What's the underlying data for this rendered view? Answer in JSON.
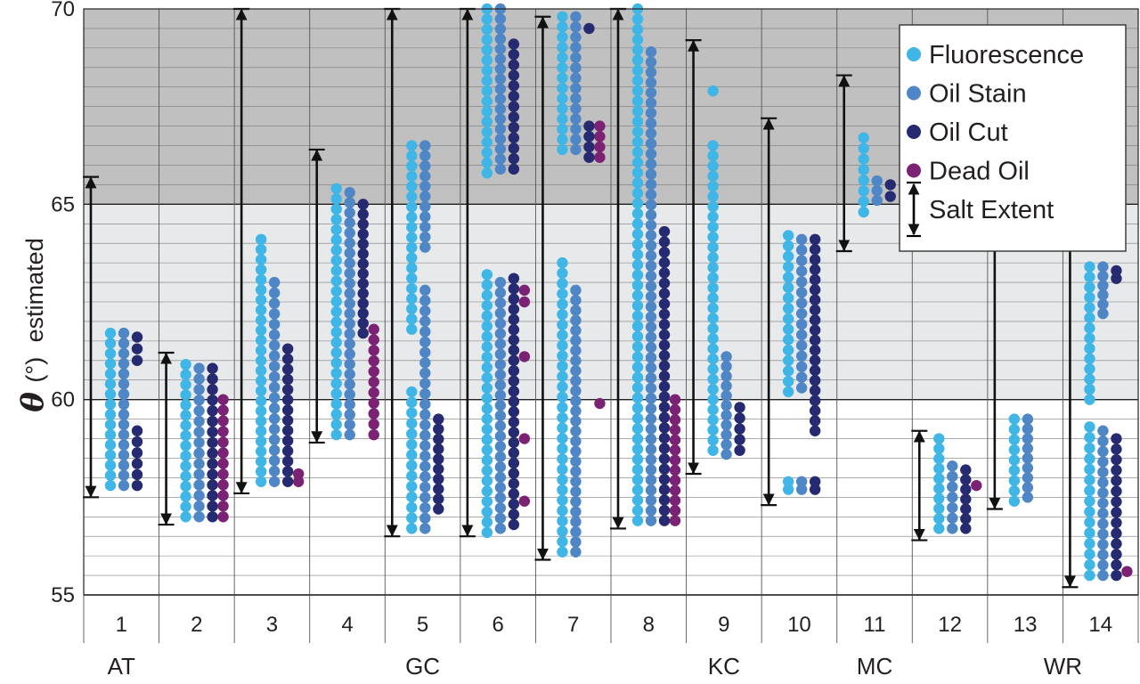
{
  "chart_data": {
    "type": "scatter",
    "ylabel_symbol": "θ",
    "ylabel_unit": "(°)",
    "ylabel_text": "estimated",
    "ylim": [
      55,
      70
    ],
    "yticks": [
      "55",
      "60",
      "65",
      "70"
    ],
    "grid": true,
    "legend_position": "top-right",
    "categories": [
      "1",
      "2",
      "3",
      "4",
      "5",
      "6",
      "7",
      "8",
      "9",
      "10",
      "11",
      "12",
      "13",
      "14"
    ],
    "groups": [
      {
        "label": "AT",
        "categories": [
          "1"
        ]
      },
      {
        "label": "GC",
        "categories": [
          "2",
          "3",
          "4",
          "5",
          "6",
          "7",
          "8"
        ]
      },
      {
        "label": "KC",
        "categories": [
          "9"
        ]
      },
      {
        "label": "MC",
        "categories": [
          "10",
          "11",
          "12"
        ]
      },
      {
        "label": "WR",
        "categories": [
          "13",
          "14"
        ]
      }
    ],
    "shaded_bands": [
      {
        "from": 65,
        "to": 70,
        "color": "#c0c0c0"
      },
      {
        "from": 60,
        "to": 65,
        "color": "#e8e9eb"
      }
    ],
    "legend": [
      {
        "label": "Fluorescence",
        "color": "#3fb6e6",
        "kind": "dot"
      },
      {
        "label": "Oil Stain",
        "color": "#4f87c6",
        "kind": "dot"
      },
      {
        "label": "Oil Cut",
        "color": "#262a70",
        "kind": "dot"
      },
      {
        "label": "Dead Oil",
        "color": "#7c2274",
        "kind": "dot"
      },
      {
        "label": "Salt Extent",
        "color": "#000000",
        "kind": "arrow"
      }
    ],
    "salt_extent": [
      {
        "category": "1",
        "min": 57.5,
        "max": 65.7
      },
      {
        "category": "2",
        "min": 56.8,
        "max": 61.2
      },
      {
        "category": "3",
        "min": 57.6,
        "max": 70.0
      },
      {
        "category": "4",
        "min": 58.9,
        "max": 66.4
      },
      {
        "category": "5",
        "min": 56.5,
        "max": 70.0
      },
      {
        "category": "6",
        "min": 56.5,
        "max": 70.0
      },
      {
        "category": "7",
        "min": 55.9,
        "max": 69.8
      },
      {
        "category": "8",
        "min": 56.7,
        "max": 70.0
      },
      {
        "category": "9",
        "min": 58.1,
        "max": 69.2
      },
      {
        "category": "10",
        "min": 57.3,
        "max": 67.2
      },
      {
        "category": "11",
        "min": 63.8,
        "max": 68.3
      },
      {
        "category": "12",
        "min": 56.4,
        "max": 59.2
      },
      {
        "category": "13",
        "min": 57.2,
        "max": 64.2
      },
      {
        "category": "14",
        "min": 55.2,
        "max": 64.2
      }
    ],
    "series": [
      {
        "name": "Fluorescence",
        "color": "#3fb6e6",
        "points": [
          {
            "category": "1",
            "ranges": [
              [
                57.8,
                61.7
              ]
            ]
          },
          {
            "category": "2",
            "ranges": [
              [
                57.0,
                60.9
              ]
            ]
          },
          {
            "category": "3",
            "ranges": [
              [
                57.9,
                64.1
              ]
            ]
          },
          {
            "category": "4",
            "ranges": [
              [
                59.1,
                65.4
              ]
            ]
          },
          {
            "category": "5",
            "ranges": [
              [
                56.7,
                60.2
              ],
              [
                61.8,
                66.5
              ]
            ]
          },
          {
            "category": "6",
            "ranges": [
              [
                56.6,
                63.2
              ],
              [
                65.8,
                70.0
              ]
            ]
          },
          {
            "category": "7",
            "ranges": [
              [
                56.1,
                63.5
              ],
              [
                66.4,
                69.8
              ]
            ]
          },
          {
            "category": "8",
            "ranges": [
              [
                56.9,
                70.0
              ]
            ]
          },
          {
            "category": "9",
            "ranges": [
              [
                58.7,
                66.5
              ],
              [
                67.9,
                67.9
              ]
            ]
          },
          {
            "category": "10",
            "ranges": [
              [
                57.7,
                57.9
              ],
              [
                60.2,
                64.2
              ]
            ]
          },
          {
            "category": "11",
            "ranges": [
              [
                64.8,
                66.7
              ]
            ]
          },
          {
            "category": "12",
            "ranges": [
              [
                56.7,
                59.0
              ]
            ]
          },
          {
            "category": "13",
            "ranges": [
              [
                57.4,
                59.5
              ]
            ]
          },
          {
            "category": "14",
            "ranges": [
              [
                55.5,
                59.3
              ],
              [
                60.0,
                63.4
              ]
            ]
          }
        ]
      },
      {
        "name": "Oil Stain",
        "color": "#4f87c6",
        "points": [
          {
            "category": "1",
            "ranges": [
              [
                57.8,
                61.7
              ]
            ]
          },
          {
            "category": "2",
            "ranges": [
              [
                57.0,
                60.8
              ]
            ]
          },
          {
            "category": "3",
            "ranges": [
              [
                57.9,
                63.0
              ]
            ]
          },
          {
            "category": "4",
            "ranges": [
              [
                59.1,
                65.3
              ]
            ]
          },
          {
            "category": "5",
            "ranges": [
              [
                56.7,
                62.8
              ],
              [
                63.9,
                66.5
              ]
            ]
          },
          {
            "category": "6",
            "ranges": [
              [
                56.7,
                63.0
              ],
              [
                65.9,
                70.0
              ]
            ]
          },
          {
            "category": "7",
            "ranges": [
              [
                56.1,
                62.8
              ],
              [
                66.4,
                69.8
              ]
            ]
          },
          {
            "category": "8",
            "ranges": [
              [
                56.9,
                68.9
              ]
            ]
          },
          {
            "category": "9",
            "ranges": [
              [
                58.6,
                61.1
              ]
            ]
          },
          {
            "category": "10",
            "ranges": [
              [
                57.7,
                57.9
              ],
              [
                60.3,
                64.1
              ]
            ]
          },
          {
            "category": "11",
            "ranges": [
              [
                65.1,
                65.6
              ]
            ]
          },
          {
            "category": "12",
            "ranges": [
              [
                56.7,
                58.3
              ]
            ]
          },
          {
            "category": "13",
            "ranges": [
              [
                57.5,
                59.5
              ]
            ]
          },
          {
            "category": "14",
            "ranges": [
              [
                55.5,
                59.2
              ],
              [
                62.2,
                63.4
              ]
            ]
          }
        ]
      },
      {
        "name": "Oil Cut",
        "color": "#262a70",
        "points": [
          {
            "category": "1",
            "ranges": [
              [
                57.8,
                59.2
              ],
              [
                61.0,
                61.6
              ]
            ]
          },
          {
            "category": "2",
            "ranges": [
              [
                57.0,
                60.8
              ]
            ]
          },
          {
            "category": "3",
            "ranges": [
              [
                57.9,
                61.3
              ]
            ]
          },
          {
            "category": "4",
            "ranges": [
              [
                61.7,
                65.0
              ]
            ]
          },
          {
            "category": "5",
            "ranges": [
              [
                57.2,
                59.5
              ]
            ]
          },
          {
            "category": "6",
            "ranges": [
              [
                56.8,
                63.1
              ],
              [
                65.9,
                69.1
              ]
            ]
          },
          {
            "category": "7",
            "ranges": [
              [
                66.2,
                67.0
              ],
              [
                69.5,
                69.5
              ]
            ]
          },
          {
            "category": "8",
            "ranges": [
              [
                56.9,
                64.3
              ]
            ]
          },
          {
            "category": "9",
            "ranges": [
              [
                58.7,
                59.8
              ]
            ]
          },
          {
            "category": "10",
            "ranges": [
              [
                57.7,
                57.9
              ],
              [
                59.2,
                64.1
              ]
            ]
          },
          {
            "category": "11",
            "ranges": [
              [
                65.2,
                65.5
              ]
            ]
          },
          {
            "category": "12",
            "ranges": [
              [
                56.7,
                58.2
              ]
            ]
          },
          {
            "category": "14",
            "ranges": [
              [
                55.5,
                59.0
              ],
              [
                63.1,
                63.3
              ]
            ]
          }
        ]
      },
      {
        "name": "Dead Oil",
        "color": "#7c2274",
        "points": [
          {
            "category": "2",
            "ranges": [
              [
                57.0,
                60.0
              ]
            ]
          },
          {
            "category": "3",
            "ranges": [
              [
                57.9,
                58.1
              ]
            ]
          },
          {
            "category": "4",
            "ranges": [
              [
                59.1,
                61.8
              ]
            ]
          },
          {
            "category": "6",
            "ranges": [
              [
                57.3,
                57.4
              ],
              [
                59.0,
                59.0
              ],
              [
                61.1,
                61.1
              ],
              [
                62.5,
                62.8
              ]
            ]
          },
          {
            "category": "7",
            "ranges": [
              [
                59.9,
                59.9
              ],
              [
                66.2,
                67.0
              ]
            ]
          },
          {
            "category": "8",
            "ranges": [
              [
                56.9,
                60.0
              ]
            ]
          },
          {
            "category": "12",
            "ranges": [
              [
                57.7,
                57.8
              ]
            ]
          },
          {
            "category": "14",
            "ranges": [
              [
                55.5,
                55.6
              ]
            ]
          }
        ]
      }
    ]
  }
}
